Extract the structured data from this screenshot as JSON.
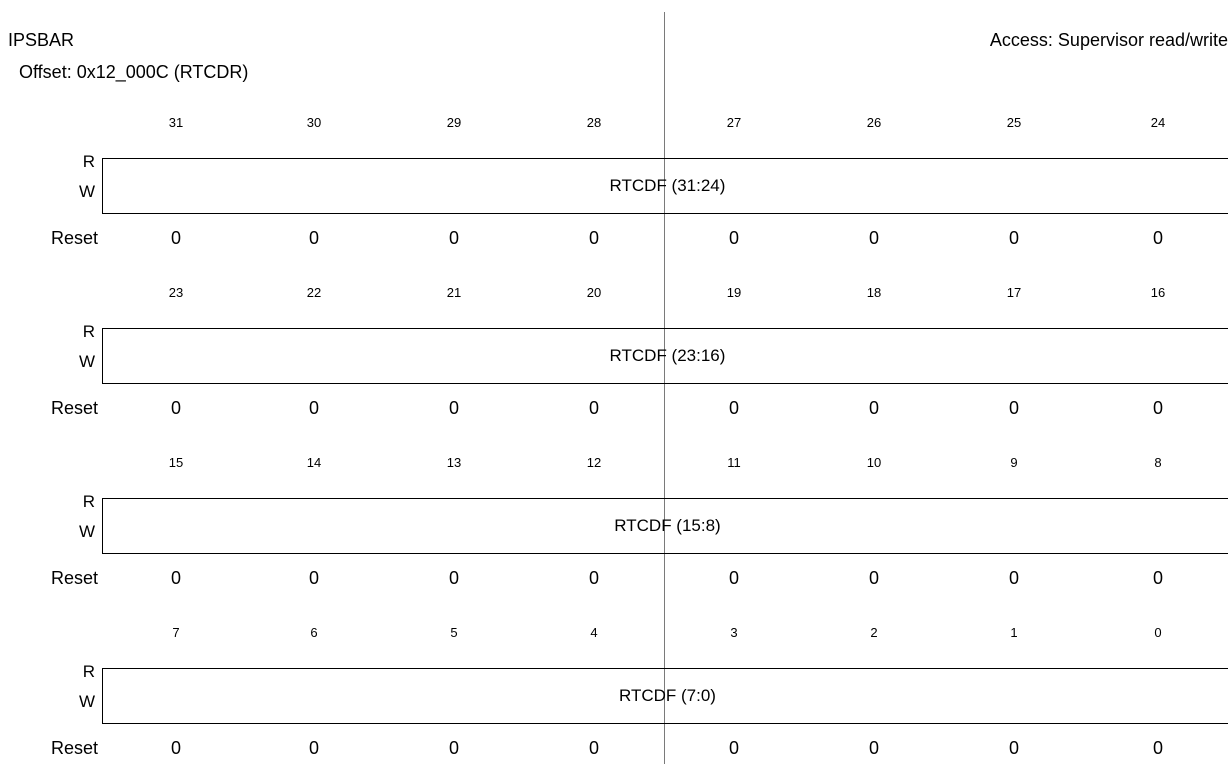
{
  "header": {
    "base": "IPSBAR",
    "offset": "Offset: 0x12_000C (RTCDR)",
    "access": "Access: Supervisor read/write"
  },
  "labels": {
    "read": "R",
    "write": "W",
    "reset": "Reset"
  },
  "rows": [
    {
      "bits": [
        "31",
        "30",
        "29",
        "28",
        "27",
        "26",
        "25",
        "24"
      ],
      "field": "RTCDF (31:24)",
      "reset": [
        "0",
        "0",
        "0",
        "0",
        "0",
        "0",
        "0",
        "0"
      ]
    },
    {
      "bits": [
        "23",
        "22",
        "21",
        "20",
        "19",
        "18",
        "17",
        "16"
      ],
      "field": "RTCDF (23:16)",
      "reset": [
        "0",
        "0",
        "0",
        "0",
        "0",
        "0",
        "0",
        "0"
      ]
    },
    {
      "bits": [
        "15",
        "14",
        "13",
        "12",
        "11",
        "10",
        "9",
        "8"
      ],
      "field": "RTCDF (15:8)",
      "reset": [
        "0",
        "0",
        "0",
        "0",
        "0",
        "0",
        "0",
        "0"
      ]
    },
    {
      "bits": [
        "7",
        "6",
        "5",
        "4",
        "3",
        "2",
        "1",
        "0"
      ],
      "field": "RTCDF (7:0)",
      "reset": [
        "0",
        "0",
        "0",
        "0",
        "0",
        "0",
        "0",
        "0"
      ]
    }
  ]
}
